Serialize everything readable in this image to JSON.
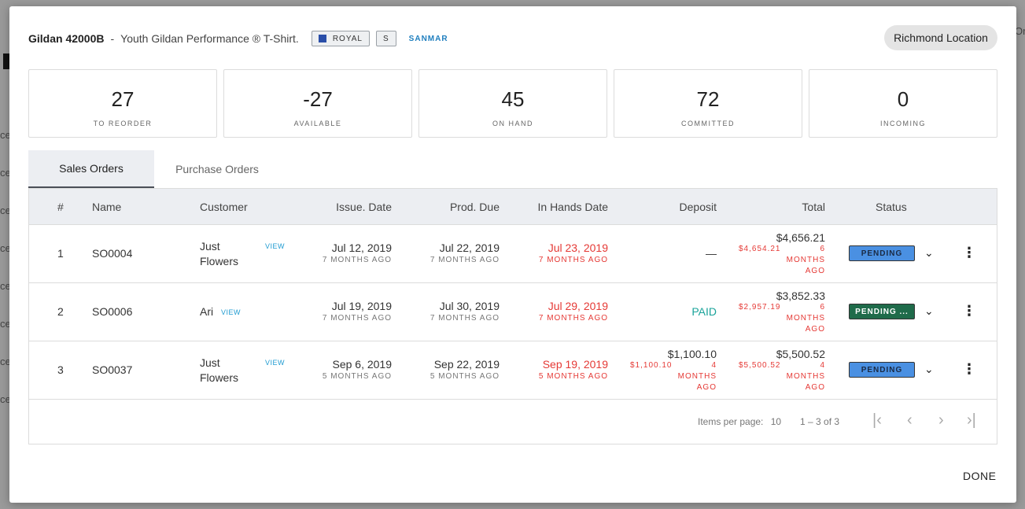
{
  "backdrop": {
    "row_fragments": [
      "ce",
      "ce",
      "ce",
      "ce",
      "ce",
      "ce",
      "ce",
      "ce"
    ],
    "right_fragment": "Or"
  },
  "header": {
    "sku": "Gildan 42000B",
    "separator": "-",
    "description": "Youth Gildan Performance ® T-Shirt.",
    "color_chip": "ROYAL",
    "color_swatch": "#2a4ea8",
    "size_chip": "S",
    "vendor": "SANMAR",
    "location_button": "Richmond Location"
  },
  "stats": [
    {
      "value": "27",
      "label": "TO REORDER"
    },
    {
      "value": "-27",
      "label": "AVAILABLE"
    },
    {
      "value": "45",
      "label": "ON HAND"
    },
    {
      "value": "72",
      "label": "COMMITTED"
    },
    {
      "value": "0",
      "label": "INCOMING"
    }
  ],
  "tabs": [
    {
      "label": "Sales Orders",
      "active": true
    },
    {
      "label": "Purchase Orders",
      "active": false
    }
  ],
  "table": {
    "columns": {
      "num": "#",
      "name": "Name",
      "customer": "Customer",
      "issue_date": "Issue. Date",
      "prod_due": "Prod. Due",
      "in_hands": "In Hands Date",
      "deposit": "Deposit",
      "total": "Total",
      "status": "Status"
    },
    "view_label": "VIEW",
    "rows": [
      {
        "num": "1",
        "name": "SO0004",
        "customer_line1": "Just",
        "customer_line2": "Flowers",
        "issue_date": "Jul 12, 2019",
        "issue_ago": "7 MONTHS AGO",
        "prod_due": "Jul 22, 2019",
        "prod_ago": "7 MONTHS AGO",
        "in_hands": "Jul 23, 2019",
        "in_hands_ago": "7 MONTHS AGO",
        "deposit": "—",
        "total": "$4,656.21",
        "total_sub_amount": "$4,654.21",
        "total_sub_l1": "6",
        "total_sub_l2": "MONTHS",
        "total_sub_l3": "AGO",
        "status": "PENDING",
        "status_color": "#4a90e2"
      },
      {
        "num": "2",
        "name": "SO0006",
        "customer_line1": "Ari",
        "issue_date": "Jul 19, 2019",
        "issue_ago": "7 MONTHS AGO",
        "prod_due": "Jul 30, 2019",
        "prod_ago": "7 MONTHS AGO",
        "in_hands": "Jul 29, 2019",
        "in_hands_ago": "7 MONTHS AGO",
        "deposit": "PAID",
        "total": "$3,852.33",
        "total_sub_amount": "$2,957.19",
        "total_sub_l1": "6",
        "total_sub_l2": "MONTHS",
        "total_sub_l3": "AGO",
        "status": "PENDING ...",
        "status_color": "#1f6b4a"
      },
      {
        "num": "3",
        "name": "SO0037",
        "customer_line1": "Just",
        "customer_line2": "Flowers",
        "issue_date": "Sep 6, 2019",
        "issue_ago": "5 MONTHS AGO",
        "prod_due": "Sep 22, 2019",
        "prod_ago": "5 MONTHS AGO",
        "in_hands": "Sep 19, 2019",
        "in_hands_ago": "5 MONTHS AGO",
        "deposit": "$1,100.10",
        "deposit_sub_amount": "$1,100.10",
        "deposit_sub_l1": "4",
        "deposit_sub_l2": "MONTHS",
        "deposit_sub_l3": "AGO",
        "total": "$5,500.52",
        "total_sub_amount": "$5,500.52",
        "total_sub_l1": "4",
        "total_sub_l2": "MONTHS",
        "total_sub_l3": "AGO",
        "status": "PENDING",
        "status_color": "#4a90e2"
      }
    ]
  },
  "pagination": {
    "items_per_page_label": "Items per page:",
    "items_per_page_value": "10",
    "range": "1 – 3 of 3",
    "icons": [
      "first-page-icon",
      "prev-page-icon",
      "next-page-icon",
      "last-page-icon"
    ]
  },
  "footer": {
    "done_label": "DONE"
  }
}
